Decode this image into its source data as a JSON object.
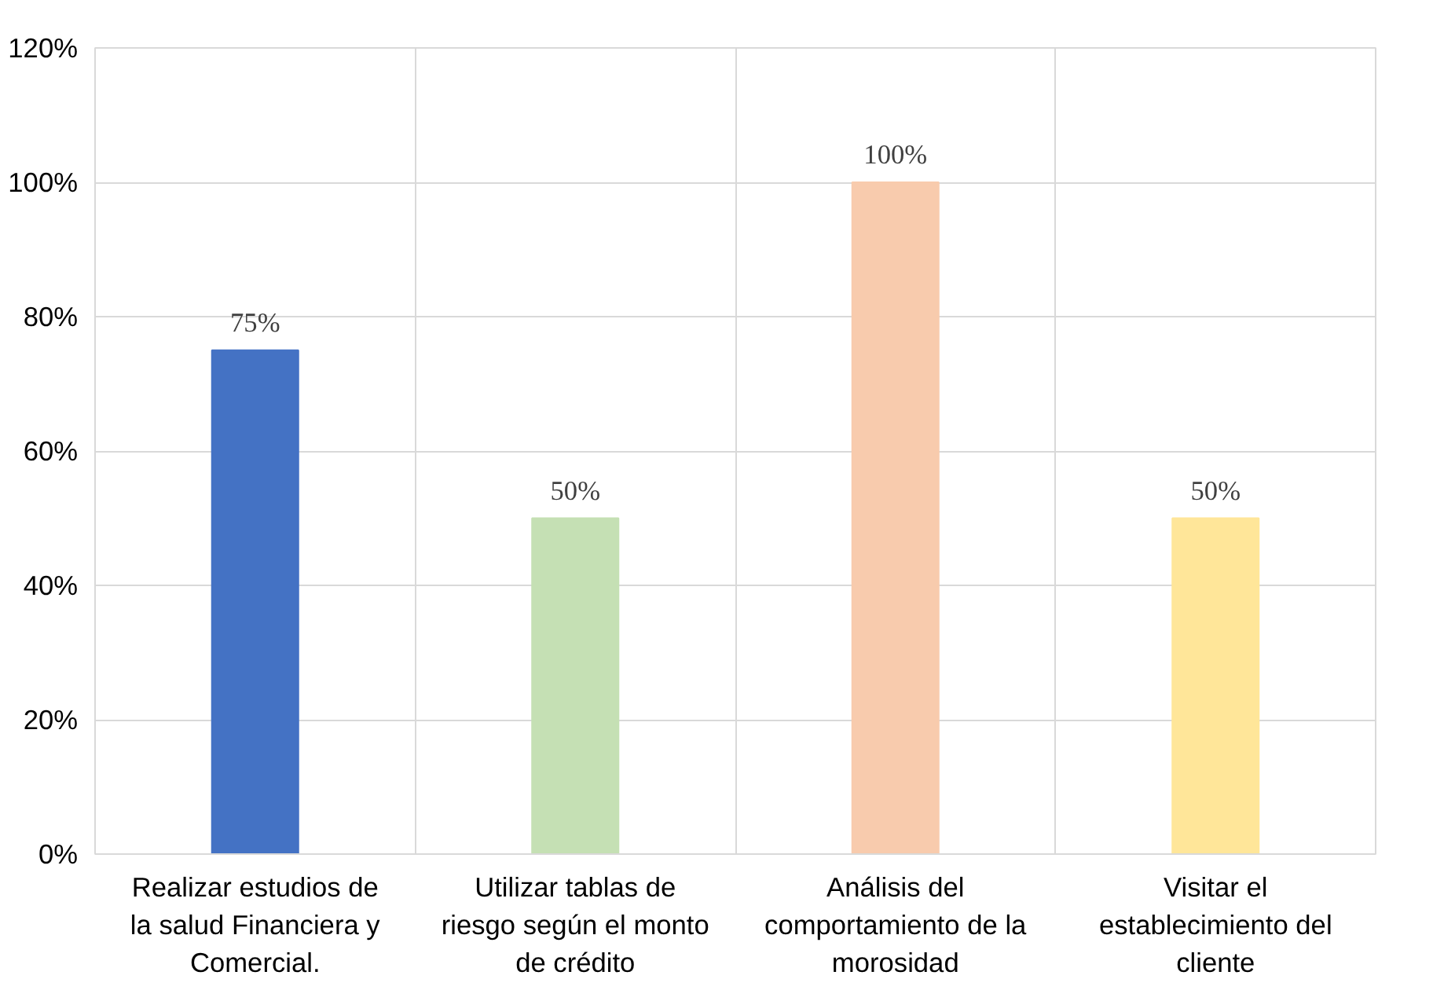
{
  "chart_data": {
    "type": "bar",
    "categories": [
      "Realizar estudios de la salud Financiera y Comercial.",
      "Utilizar tablas de riesgo según el monto de crédito",
      "Análisis del comportamiento de la morosidad",
      "Visitar el establecimiento del cliente"
    ],
    "values": [
      75,
      50,
      100,
      50
    ],
    "colors": [
      "#4472c4",
      "#c5e0b4",
      "#f8cbad",
      "#ffe699"
    ],
    "value_labels": [
      "75%",
      "50%",
      "100%",
      "50%"
    ],
    "ylim": [
      0,
      120
    ],
    "yticks": [
      {
        "value": 0,
        "label": "0%"
      },
      {
        "value": 20,
        "label": "20%"
      },
      {
        "value": 40,
        "label": "40%"
      },
      {
        "value": 60,
        "label": "60%"
      },
      {
        "value": 80,
        "label": "80%"
      },
      {
        "value": 100,
        "label": "100%"
      },
      {
        "value": 120,
        "label": "120%"
      }
    ],
    "grid": true
  }
}
